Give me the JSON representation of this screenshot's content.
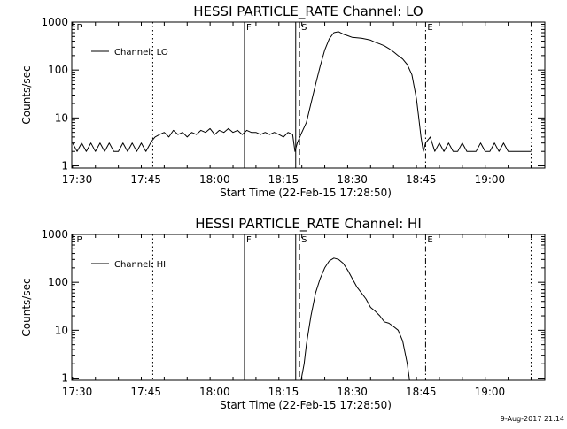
{
  "footer": {
    "stamp": "9-Aug-2017 21:14"
  },
  "chart_data": [
    {
      "type": "line",
      "title": "HESSI PARTICLE_RATE Channel: LO",
      "xlabel": "Start Time (22-Feb-15 17:28:50)",
      "ylabel": "Counts/sec",
      "yscale": "log",
      "xlim": [
        "17:28:50",
        "19:12:00"
      ],
      "ylim": [
        0.9,
        1000
      ],
      "xticks": [
        "17:30",
        "17:45",
        "18:00",
        "18:15",
        "18:30",
        "18:45",
        "19:00"
      ],
      "yticks": [
        "1",
        "10",
        "100",
        "1000"
      ],
      "grid": false,
      "legend": {
        "position": "top-left",
        "label": "Channel: LO"
      },
      "markers": [
        {
          "time": "17:29:30",
          "label": "P",
          "style": "none"
        },
        {
          "time": "17:46:30",
          "label": "",
          "style": "dotted"
        },
        {
          "time": "18:06:30",
          "label": "F",
          "style": "solid"
        },
        {
          "time": "18:17:40",
          "label": "",
          "style": "solid"
        },
        {
          "time": "18:18:30",
          "label": "S",
          "style": "dashed"
        },
        {
          "time": "18:46:00",
          "label": "E",
          "style": "dashdot"
        },
        {
          "time": "19:09:00",
          "label": "",
          "style": "dotted"
        }
      ],
      "series": [
        {
          "name": "Channel: LO",
          "x": [
            "17:29:00",
            "17:30:00",
            "17:31:00",
            "17:32:00",
            "17:33:00",
            "17:34:00",
            "17:35:00",
            "17:36:00",
            "17:37:00",
            "17:38:00",
            "17:39:00",
            "17:40:00",
            "17:41:00",
            "17:42:00",
            "17:43:00",
            "17:44:00",
            "17:45:00",
            "17:46:00",
            "17:46:30",
            "17:47:00",
            "17:48:00",
            "17:49:00",
            "17:50:00",
            "17:51:00",
            "17:52:00",
            "17:53:00",
            "17:54:00",
            "17:55:00",
            "17:56:00",
            "17:57:00",
            "17:58:00",
            "17:59:00",
            "18:00:00",
            "18:01:00",
            "18:02:00",
            "18:03:00",
            "18:04:00",
            "18:05:00",
            "18:06:00",
            "18:07:00",
            "18:08:00",
            "18:09:00",
            "18:10:00",
            "18:11:00",
            "18:12:00",
            "18:13:00",
            "18:14:00",
            "18:15:00",
            "18:16:00",
            "18:17:00",
            "18:17:30",
            "18:18:00",
            "18:19:00",
            "18:20:00",
            "18:21:00",
            "18:22:00",
            "18:23:00",
            "18:24:00",
            "18:25:00",
            "18:26:00",
            "18:27:00",
            "18:28:00",
            "18:29:00",
            "18:30:00",
            "18:31:00",
            "18:32:00",
            "18:33:00",
            "18:34:00",
            "18:35:00",
            "18:36:00",
            "18:37:00",
            "18:38:00",
            "18:39:00",
            "18:40:00",
            "18:41:00",
            "18:42:00",
            "18:43:00",
            "18:44:00",
            "18:44:30",
            "18:45:00",
            "18:45:30",
            "18:46:00",
            "18:47:00",
            "18:48:00",
            "18:49:00",
            "18:50:00",
            "18:51:00",
            "18:52:00",
            "18:53:00",
            "18:54:00",
            "18:55:00",
            "18:56:00",
            "18:57:00",
            "18:58:00",
            "18:59:00",
            "19:00:00",
            "19:01:00",
            "19:02:00",
            "19:03:00",
            "19:04:00",
            "19:05:00",
            "19:06:00",
            "19:07:00",
            "19:08:00",
            "19:09:00"
          ],
          "y": [
            3,
            2,
            3,
            2,
            3,
            2,
            3,
            2,
            3,
            2,
            2,
            3,
            2,
            3,
            2,
            3,
            2,
            3,
            3.5,
            4,
            4.5,
            5,
            4,
            5.5,
            4.5,
            5,
            4,
            5,
            4.5,
            5.5,
            5,
            6,
            4.5,
            5.5,
            5,
            6,
            5,
            5.5,
            4.5,
            5.5,
            5,
            5,
            4.5,
            5,
            4.5,
            5,
            4.5,
            4,
            5,
            4.5,
            2,
            3,
            5,
            8,
            20,
            50,
            120,
            260,
            450,
            600,
            630,
            560,
            520,
            480,
            470,
            460,
            440,
            420,
            380,
            350,
            320,
            280,
            240,
            200,
            170,
            130,
            80,
            25,
            10,
            4,
            2,
            3,
            4,
            2,
            3,
            2,
            3,
            2,
            2,
            3,
            2,
            2,
            2,
            3,
            2,
            2,
            3,
            2,
            3,
            2,
            2,
            2,
            2,
            2,
            2
          ]
        }
      ]
    },
    {
      "type": "line",
      "title": "HESSI PARTICLE_RATE Channel: HI",
      "xlabel": "Start Time (22-Feb-15 17:28:50)",
      "ylabel": "Counts/sec",
      "yscale": "log",
      "xlim": [
        "17:28:50",
        "19:12:00"
      ],
      "ylim": [
        0.9,
        1000
      ],
      "xticks": [
        "17:30",
        "17:45",
        "18:00",
        "18:15",
        "18:30",
        "18:45",
        "19:00"
      ],
      "yticks": [
        "1",
        "10",
        "100",
        "1000"
      ],
      "grid": false,
      "legend": {
        "position": "top-left",
        "label": "Channel: HI"
      },
      "markers": [
        {
          "time": "17:29:30",
          "label": "P",
          "style": "none"
        },
        {
          "time": "17:46:30",
          "label": "",
          "style": "dotted"
        },
        {
          "time": "18:06:30",
          "label": "F",
          "style": "solid"
        },
        {
          "time": "18:17:40",
          "label": "",
          "style": "solid"
        },
        {
          "time": "18:18:30",
          "label": "S",
          "style": "dashed"
        },
        {
          "time": "18:46:00",
          "label": "E",
          "style": "dashdot"
        },
        {
          "time": "19:09:00",
          "label": "",
          "style": "dotted"
        }
      ],
      "series": [
        {
          "name": "Channel: HI",
          "x": [
            "18:18:50",
            "18:19:30",
            "18:20:00",
            "18:21:00",
            "18:22:00",
            "18:23:00",
            "18:24:00",
            "18:25:00",
            "18:26:00",
            "18:27:00",
            "18:28:00",
            "18:29:00",
            "18:30:00",
            "18:31:00",
            "18:32:00",
            "18:33:00",
            "18:34:00",
            "18:35:00",
            "18:36:00",
            "18:37:00",
            "18:38:00",
            "18:39:00",
            "18:40:00",
            "18:41:00",
            "18:42:00",
            "18:42:30"
          ],
          "y": [
            0.9,
            2,
            5,
            20,
            60,
            120,
            200,
            280,
            320,
            300,
            250,
            180,
            120,
            80,
            60,
            45,
            30,
            25,
            20,
            15,
            14,
            12,
            10,
            6,
            2,
            0.9
          ]
        }
      ]
    }
  ]
}
